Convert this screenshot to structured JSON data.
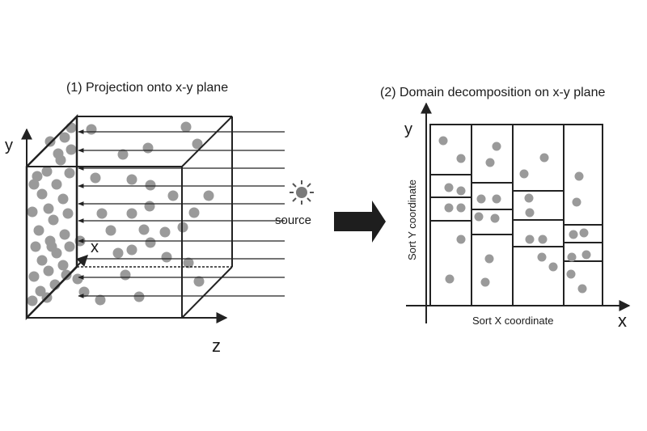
{
  "left_panel": {
    "title": "(1) Projection onto  x-y plane",
    "axis_y": "y",
    "axis_x": "x",
    "axis_z": "z",
    "source_label": "source",
    "source_icon": "sun-icon"
  },
  "right_panel": {
    "title": "(2) Domain decomposition on x-y plane",
    "axis_y": "y",
    "axis_x": "x",
    "sort_x_label": "Sort X coordinate",
    "sort_y_label": "Sort Y coordinate"
  },
  "arrow_icon": "right-arrow-icon",
  "colors": {
    "line": "#222222",
    "particle": "#9a9a9a",
    "particle_dark": "#808080",
    "background": "#ffffff"
  }
}
